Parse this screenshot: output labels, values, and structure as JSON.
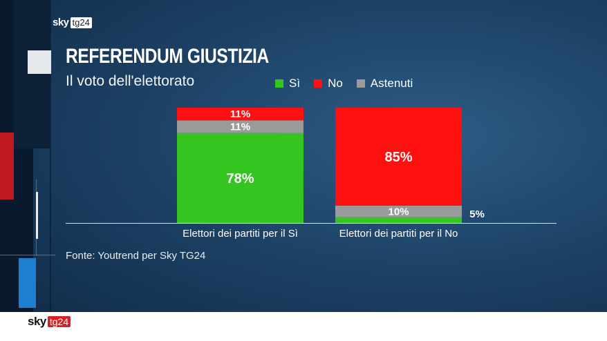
{
  "brand": {
    "sky": "sky",
    "tg": "tg24"
  },
  "title": "REFERENDUM GIUSTIZIA",
  "subtitle": "Il voto dell'elettorato",
  "legend": [
    {
      "label": "Sì",
      "color": "#34c520"
    },
    {
      "label": "No",
      "color": "#ff1010"
    },
    {
      "label": "Astenuti",
      "color": "#9b9b9b"
    }
  ],
  "source": "Fonte: Youtrend per Sky TG24",
  "chart_data": {
    "type": "bar",
    "stacked": true,
    "categories": [
      "Elettori dei partiti per il Sì",
      "Elettori dei partiti per il No"
    ],
    "series": [
      {
        "name": "Sì",
        "values": [
          78,
          5
        ],
        "labels": [
          "78%",
          "5%"
        ],
        "color": "#34c520"
      },
      {
        "name": "Astenuti",
        "values": [
          11,
          10
        ],
        "labels": [
          "11%",
          "10%"
        ],
        "color": "#9b9b9b"
      },
      {
        "name": "No",
        "values": [
          11,
          85
        ],
        "labels": [
          "11%",
          "85%"
        ],
        "color": "#ff1010"
      }
    ],
    "ylim": [
      0,
      100
    ],
    "grid": false,
    "legend_position": "top"
  }
}
